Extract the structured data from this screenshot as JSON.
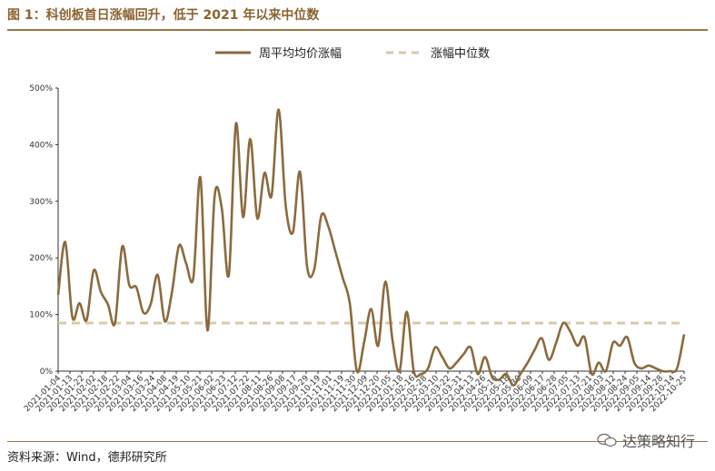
{
  "header": {
    "title": "图 1：科创板首日涨幅回升，低于 2021 年以来中位数"
  },
  "footer": {
    "source": "资料来源：Wind，德邦研究所",
    "watermark": "达策略知行"
  },
  "colors": {
    "line": "#8B6A3E",
    "median": "#D9C9A8",
    "accent": "#9B7440"
  },
  "chart_data": {
    "type": "line",
    "ylim": [
      0,
      500
    ],
    "y_ticks": [
      "0%",
      "100%",
      "200%",
      "300%",
      "400%",
      "500%"
    ],
    "x_tick_labels": [
      "2021-01-04",
      "2021-01-13",
      "2021-01-22",
      "2021-02-02",
      "2021-02-18",
      "2021-02-22",
      "2021-03-04",
      "2021-03-16",
      "2021-03-24",
      "2021-04-08",
      "2021-04-19",
      "2021-05-10",
      "2021-05-21",
      "2021-06-02",
      "2021-06-23",
      "2021-07-12",
      "2021-07-22",
      "2021-08-11",
      "2021-08-26",
      "2021-09-08",
      "2021-09-17",
      "2021-09-29",
      "2021-10-19",
      "2021-11-01",
      "2021-11-19",
      "2021-11-30",
      "2021-12-09",
      "2021-12-20",
      "2022-01-05",
      "2022-01-18",
      "2022-02-16",
      "2022-02-28",
      "2022-03-10",
      "2022-03-22",
      "2022-03-31",
      "2022-04-13",
      "2022-04-26",
      "2022-05-10",
      "2022-05-18",
      "2022-05-30",
      "2022-06-09",
      "2022-06-17",
      "2022-06-28",
      "2022-07-05",
      "2022-07-13",
      "2022-07-21",
      "2022-08-03",
      "2022-08-12",
      "2022-08-24",
      "2022-09-05",
      "2022-09-14",
      "2022-09-28",
      "2022-10-14",
      "2022-10-25"
    ],
    "legend": [
      "周平均均价涨幅",
      "涨幅中位数"
    ],
    "median": 85,
    "series": [
      {
        "name": "周平均均价涨幅",
        "values": [
          135,
          228,
          95,
          120,
          90,
          178,
          140,
          118,
          85,
          220,
          152,
          148,
          103,
          118,
          170,
          88,
          140,
          222,
          190,
          165,
          342,
          72,
          310,
          288,
          170,
          437,
          272,
          410,
          270,
          350,
          310,
          462,
          292,
          245,
          352,
          185,
          180,
          275,
          255,
          210,
          165,
          120,
          0,
          50,
          110,
          45,
          158,
          55,
          0,
          105,
          0,
          -5,
          5,
          42,
          25,
          5,
          15,
          30,
          42,
          -5,
          25,
          -10,
          -15,
          -5,
          -25,
          -5,
          15,
          38,
          58,
          20,
          50,
          85,
          70,
          45,
          60,
          -5,
          15,
          0,
          50,
          45,
          60,
          15,
          5,
          10,
          5,
          0,
          0,
          5,
          65
        ]
      }
    ]
  }
}
